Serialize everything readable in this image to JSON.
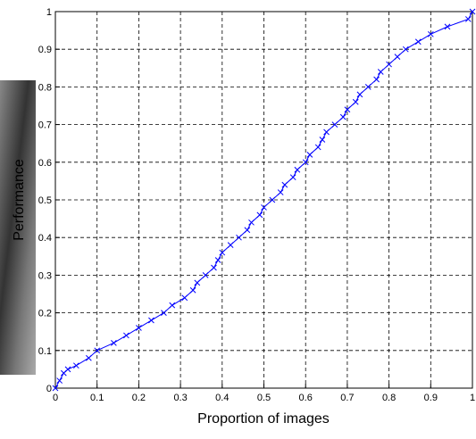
{
  "chart_data": {
    "type": "line",
    "xlabel": "Proportion of images",
    "ylabel": "Performance",
    "series": [
      {
        "color": "#0000ff",
        "marker": "x",
        "x": [
          0,
          0.01,
          0.02,
          0.03,
          0.05,
          0.08,
          0.1,
          0.14,
          0.17,
          0.2,
          0.23,
          0.26,
          0.28,
          0.31,
          0.33,
          0.34,
          0.36,
          0.38,
          0.39,
          0.4,
          0.42,
          0.44,
          0.46,
          0.47,
          0.49,
          0.5,
          0.52,
          0.54,
          0.55,
          0.57,
          0.58,
          0.6,
          0.61,
          0.63,
          0.64,
          0.65,
          0.67,
          0.69,
          0.7,
          0.72,
          0.73,
          0.75,
          0.77,
          0.78,
          0.8,
          0.82,
          0.84,
          0.87,
          0.9,
          0.94,
          0.99,
          1
        ],
        "values": [
          0,
          0.02,
          0.04,
          0.05,
          0.06,
          0.08,
          0.1,
          0.12,
          0.14,
          0.16,
          0.18,
          0.2,
          0.22,
          0.24,
          0.26,
          0.28,
          0.3,
          0.32,
          0.34,
          0.36,
          0.38,
          0.4,
          0.42,
          0.44,
          0.46,
          0.48,
          0.5,
          0.52,
          0.54,
          0.56,
          0.58,
          0.6,
          0.62,
          0.64,
          0.66,
          0.68,
          0.7,
          0.72,
          0.74,
          0.76,
          0.78,
          0.8,
          0.82,
          0.84,
          0.86,
          0.88,
          0.9,
          0.92,
          0.94,
          0.96,
          0.98,
          1
        ]
      }
    ],
    "xlim": [
      0,
      1
    ],
    "ylim": [
      0,
      1
    ],
    "xticks": [
      0,
      0.1,
      0.2,
      0.3,
      0.4,
      0.5,
      0.6,
      0.7,
      0.8,
      0.9,
      1
    ],
    "yticks": [
      0,
      0.1,
      0.2,
      0.3,
      0.4,
      0.5,
      0.6,
      0.7,
      0.8,
      0.9,
      1
    ],
    "grid": true
  }
}
